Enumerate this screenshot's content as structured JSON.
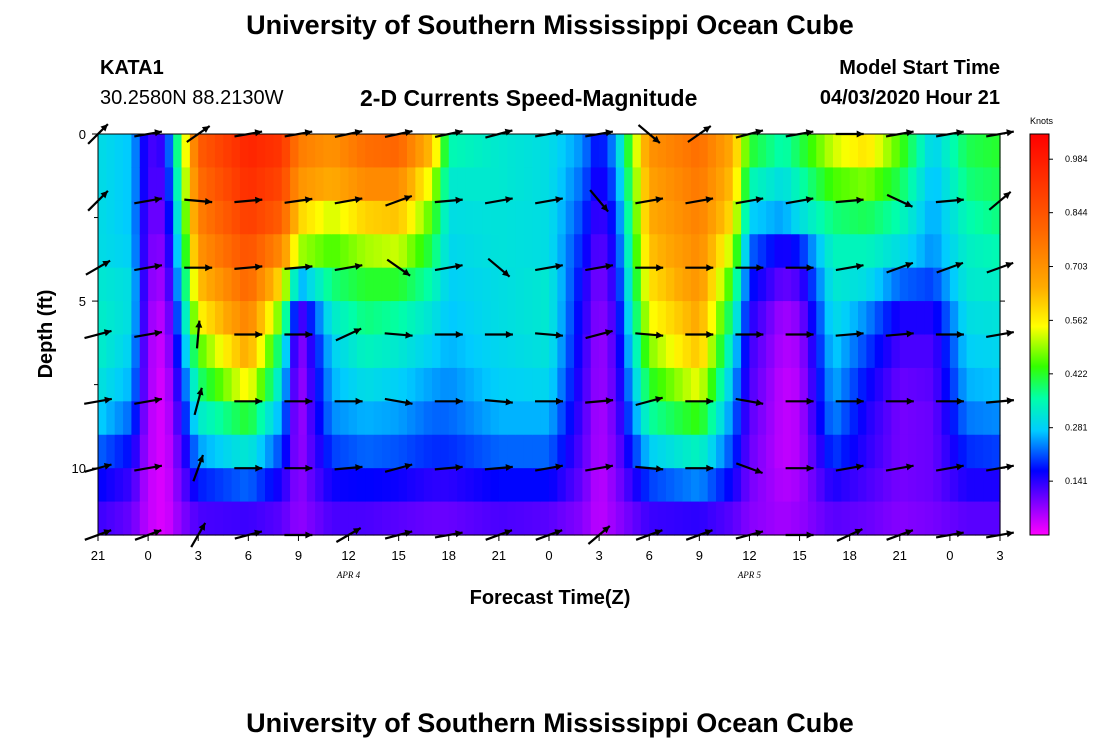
{
  "header": {
    "title": "University of Southern Mississippi Ocean Cube",
    "station_id": "KATA1",
    "coordinates": "30.2580N 88.2130W",
    "subtitle": "2-D Currents Speed-Magnitude",
    "start_label": "Model Start Time",
    "start_value": "04/03/2020 Hour 21"
  },
  "footer": {
    "title": "University of Southern Mississippi Ocean Cube"
  },
  "chart_data": {
    "type": "heatmap",
    "title": "2-D Currents Speed-Magnitude",
    "xlabel": "Forecast Time(Z)",
    "ylabel": "Depth (ft)",
    "xlim": [
      0,
      54
    ],
    "ylim": [
      12,
      0
    ],
    "x_tick_labels": [
      "21",
      "0",
      "3",
      "6",
      "9",
      "12",
      "15",
      "18",
      "21",
      "0",
      "3",
      "6",
      "9",
      "12",
      "15",
      "18",
      "21",
      "0",
      "3"
    ],
    "x_tick_hours": [
      0,
      3,
      6,
      9,
      12,
      15,
      18,
      21,
      24,
      27,
      30,
      33,
      36,
      39,
      42,
      45,
      48,
      51,
      54
    ],
    "y_ticks": [
      0,
      5,
      10
    ],
    "y_minor_ticks": [
      2.5,
      7.5
    ],
    "date_labels": [
      {
        "text": "APR 4",
        "hour": 15
      },
      {
        "text": "APR 5",
        "hour": 39
      }
    ],
    "colorbar": {
      "unit": "Knots",
      "min": 0.0,
      "max": 1.05,
      "ticks": [
        "0.141",
        "0.281",
        "0.422",
        "0.562",
        "0.703",
        "0.844",
        "0.984"
      ],
      "tick_values": [
        0.141,
        0.281,
        0.422,
        0.562,
        0.703,
        0.844,
        0.984
      ]
    },
    "depths": [
      0.5,
      1.5,
      2.5,
      3.5,
      4.5,
      5.5,
      6.5,
      7.5,
      8.5,
      9.5,
      10.5,
      11.5
    ],
    "speed_profile": [
      {
        "hour": 0,
        "values": [
          0.3,
          0.3,
          0.3,
          0.3,
          0.32,
          0.33,
          0.33,
          0.31,
          0.28,
          0.22,
          0.17,
          0.13
        ]
      },
      {
        "hour": 2,
        "values": [
          0.27,
          0.27,
          0.27,
          0.28,
          0.3,
          0.3,
          0.28,
          0.26,
          0.22,
          0.17,
          0.13,
          0.1
        ]
      },
      {
        "hour": 3,
        "values": [
          0.12,
          0.12,
          0.1,
          0.09,
          0.08,
          0.07,
          0.06,
          0.06,
          0.05,
          0.05,
          0.04,
          0.04
        ]
      },
      {
        "hour": 4,
        "values": [
          0.14,
          0.12,
          0.1,
          0.08,
          0.06,
          0.04,
          0.03,
          0.02,
          0.02,
          0.02,
          0.02,
          0.02
        ]
      },
      {
        "hour": 5,
        "values": [
          0.45,
          0.42,
          0.38,
          0.34,
          0.3,
          0.26,
          0.22,
          0.18,
          0.15,
          0.12,
          0.1,
          0.08
        ]
      },
      {
        "hour": 6,
        "values": [
          0.82,
          0.78,
          0.74,
          0.7,
          0.62,
          0.55,
          0.45,
          0.38,
          0.32,
          0.25,
          0.18,
          0.12
        ]
      },
      {
        "hour": 9,
        "values": [
          0.96,
          0.94,
          0.9,
          0.85,
          0.8,
          0.74,
          0.66,
          0.56,
          0.42,
          0.32,
          0.22,
          0.13
        ]
      },
      {
        "hour": 11,
        "values": [
          0.92,
          0.88,
          0.82,
          0.72,
          0.58,
          0.45,
          0.35,
          0.3,
          0.25,
          0.2,
          0.15,
          0.11
        ]
      },
      {
        "hour": 12,
        "values": [
          0.75,
          0.7,
          0.6,
          0.5,
          0.25,
          0.1,
          0.06,
          0.05,
          0.05,
          0.06,
          0.07,
          0.07
        ]
      },
      {
        "hour": 14,
        "values": [
          0.7,
          0.65,
          0.52,
          0.45,
          0.38,
          0.32,
          0.28,
          0.26,
          0.24,
          0.2,
          0.16,
          0.12
        ]
      },
      {
        "hour": 16,
        "values": [
          0.78,
          0.72,
          0.6,
          0.5,
          0.42,
          0.38,
          0.34,
          0.3,
          0.26,
          0.22,
          0.17,
          0.12
        ]
      },
      {
        "hour": 18,
        "values": [
          0.8,
          0.72,
          0.62,
          0.52,
          0.42,
          0.36,
          0.32,
          0.28,
          0.25,
          0.21,
          0.16,
          0.11
        ]
      },
      {
        "hour": 20,
        "values": [
          0.62,
          0.52,
          0.45,
          0.4,
          0.35,
          0.31,
          0.28,
          0.25,
          0.22,
          0.19,
          0.14,
          0.1
        ]
      },
      {
        "hour": 21,
        "values": [
          0.35,
          0.32,
          0.3,
          0.29,
          0.28,
          0.27,
          0.26,
          0.24,
          0.22,
          0.19,
          0.14,
          0.1
        ]
      },
      {
        "hour": 24,
        "values": [
          0.32,
          0.32,
          0.31,
          0.31,
          0.3,
          0.3,
          0.29,
          0.28,
          0.26,
          0.22,
          0.17,
          0.12
        ]
      },
      {
        "hour": 27,
        "values": [
          0.3,
          0.3,
          0.3,
          0.3,
          0.32,
          0.32,
          0.31,
          0.29,
          0.26,
          0.22,
          0.17,
          0.11
        ]
      },
      {
        "hour": 29,
        "values": [
          0.24,
          0.22,
          0.2,
          0.18,
          0.16,
          0.15,
          0.14,
          0.13,
          0.12,
          0.11,
          0.1,
          0.08
        ]
      },
      {
        "hour": 30,
        "values": [
          0.16,
          0.14,
          0.12,
          0.1,
          0.08,
          0.07,
          0.06,
          0.06,
          0.05,
          0.05,
          0.04,
          0.04
        ]
      },
      {
        "hour": 31,
        "values": [
          0.25,
          0.22,
          0.19,
          0.17,
          0.15,
          0.13,
          0.12,
          0.11,
          0.1,
          0.09,
          0.08,
          0.07
        ]
      },
      {
        "hour": 33,
        "values": [
          0.7,
          0.67,
          0.65,
          0.62,
          0.58,
          0.54,
          0.48,
          0.42,
          0.36,
          0.28,
          0.2,
          0.13
        ]
      },
      {
        "hour": 36,
        "values": [
          0.78,
          0.76,
          0.74,
          0.72,
          0.7,
          0.66,
          0.62,
          0.54,
          0.44,
          0.34,
          0.24,
          0.14
        ]
      },
      {
        "hour": 38,
        "values": [
          0.65,
          0.62,
          0.58,
          0.5,
          0.42,
          0.36,
          0.3,
          0.26,
          0.23,
          0.2,
          0.16,
          0.11
        ]
      },
      {
        "hour": 39,
        "values": [
          0.42,
          0.35,
          0.28,
          0.22,
          0.18,
          0.15,
          0.13,
          0.12,
          0.11,
          0.1,
          0.09,
          0.08
        ]
      },
      {
        "hour": 41,
        "values": [
          0.35,
          0.3,
          0.25,
          0.15,
          0.1,
          0.06,
          0.05,
          0.04,
          0.04,
          0.04,
          0.05,
          0.06
        ]
      },
      {
        "hour": 42,
        "values": [
          0.4,
          0.35,
          0.3,
          0.18,
          0.12,
          0.08,
          0.06,
          0.05,
          0.05,
          0.05,
          0.06,
          0.07
        ]
      },
      {
        "hour": 44,
        "values": [
          0.52,
          0.45,
          0.38,
          0.34,
          0.32,
          0.3,
          0.28,
          0.26,
          0.24,
          0.2,
          0.15,
          0.11
        ]
      },
      {
        "hour": 46,
        "values": [
          0.58,
          0.48,
          0.4,
          0.34,
          0.3,
          0.24,
          0.2,
          0.17,
          0.15,
          0.14,
          0.12,
          0.1
        ]
      },
      {
        "hour": 48,
        "values": [
          0.45,
          0.4,
          0.35,
          0.3,
          0.22,
          0.15,
          0.12,
          0.1,
          0.09,
          0.09,
          0.09,
          0.08
        ]
      },
      {
        "hour": 50,
        "values": [
          0.28,
          0.26,
          0.25,
          0.24,
          0.2,
          0.15,
          0.12,
          0.11,
          0.1,
          0.1,
          0.1,
          0.09
        ]
      },
      {
        "hour": 52,
        "values": [
          0.4,
          0.38,
          0.35,
          0.33,
          0.32,
          0.3,
          0.28,
          0.26,
          0.23,
          0.19,
          0.15,
          0.11
        ]
      },
      {
        "hour": 54,
        "values": [
          0.42,
          0.4,
          0.38,
          0.35,
          0.33,
          0.31,
          0.29,
          0.27,
          0.24,
          0.2,
          0.15,
          0.11
        ]
      }
    ],
    "arrow_depths": [
      0,
      2,
      4,
      6,
      8,
      10,
      12
    ],
    "arrow_hours": [
      0,
      3,
      6,
      9,
      12,
      15,
      18,
      21,
      24,
      27,
      30,
      33,
      36,
      39,
      42,
      45,
      48,
      51,
      54
    ],
    "arrow_angles_deg": [
      [
        45,
        10,
        35,
        10,
        10,
        12,
        12,
        12,
        15,
        10,
        10,
        -40,
        35,
        15,
        10,
        0,
        10,
        10,
        10
      ],
      [
        45,
        10,
        -5,
        5,
        8,
        10,
        20,
        5,
        10,
        10,
        -50,
        10,
        10,
        10,
        10,
        5,
        -25,
        5,
        40
      ],
      [
        30,
        10,
        0,
        5,
        5,
        10,
        -35,
        10,
        -40,
        10,
        10,
        0,
        0,
        0,
        0,
        10,
        20,
        20,
        20
      ],
      [
        15,
        10,
        85,
        0,
        0,
        25,
        -5,
        0,
        0,
        -5,
        15,
        -5,
        0,
        0,
        0,
        5,
        5,
        0,
        10
      ],
      [
        10,
        10,
        75,
        0,
        0,
        0,
        -10,
        0,
        -5,
        0,
        5,
        15,
        0,
        -10,
        0,
        0,
        0,
        0,
        5
      ],
      [
        15,
        10,
        70,
        0,
        0,
        5,
        15,
        5,
        5,
        10,
        10,
        -5,
        0,
        -20,
        0,
        10,
        10,
        10,
        10
      ],
      [
        20,
        20,
        60,
        15,
        0,
        30,
        15,
        10,
        20,
        20,
        40,
        20,
        20,
        15,
        0,
        25,
        20,
        10,
        10
      ]
    ]
  }
}
